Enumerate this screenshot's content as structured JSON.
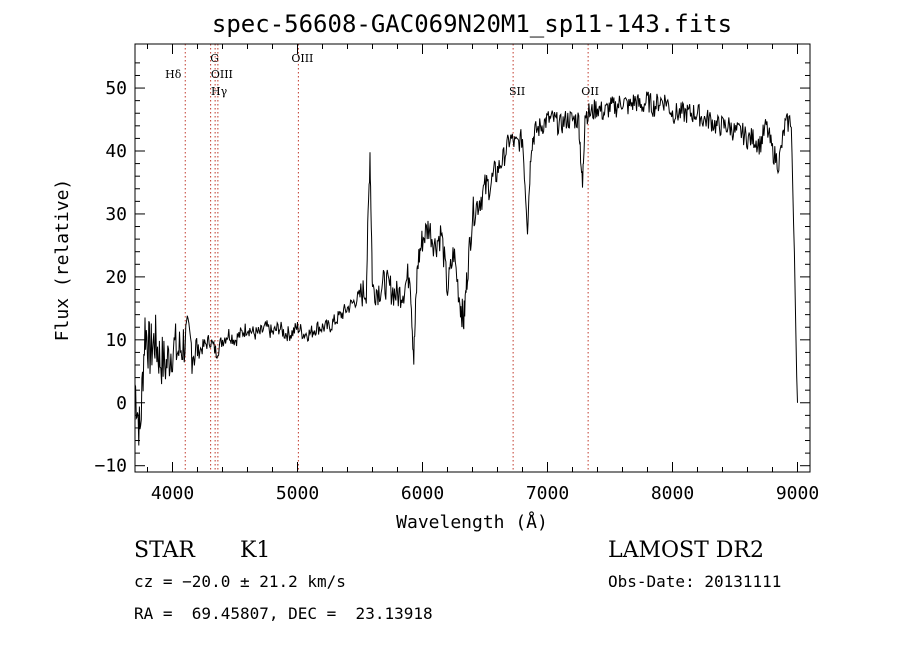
{
  "chart_data": {
    "type": "line",
    "title": "spec-56608-GAC069N20M1_sp11-143.fits",
    "xlabel": "Wavelength (Å)",
    "ylabel": "Flux (relative)",
    "xlim": [
      3700,
      9100
    ],
    "ylim": [
      -11,
      57
    ],
    "xticks": [
      4000,
      5000,
      6000,
      7000,
      8000,
      9000
    ],
    "yticks": [
      -10,
      0,
      10,
      20,
      30,
      40,
      50
    ],
    "series": [
      {
        "x": [
          3700,
          3740,
          3780,
          3820,
          3860,
          3900,
          3950,
          4000,
          4050,
          4100,
          4150,
          4200,
          4250,
          4300,
          4350,
          4400,
          4450,
          4500,
          4550,
          4600,
          4650,
          4700,
          4750,
          4800,
          4850,
          4900,
          4950,
          5000,
          5050,
          5100,
          5150,
          5200,
          5250,
          5300,
          5350,
          5400,
          5450,
          5500,
          5550,
          5580,
          5600,
          5650,
          5700,
          5750,
          5800,
          5850,
          5900,
          5930,
          5960,
          6000,
          6050,
          6100,
          6150,
          6200,
          6250,
          6300,
          6330,
          6360,
          6400,
          6450,
          6500,
          6550,
          6600,
          6650,
          6700,
          6750,
          6800,
          6840,
          6870,
          6900,
          6950,
          7000,
          7050,
          7100,
          7150,
          7200,
          7250,
          7280,
          7300,
          7350,
          7400,
          7450,
          7500,
          7550,
          7600,
          7650,
          7700,
          7750,
          7800,
          7850,
          7900,
          7950,
          8000,
          8050,
          8100,
          8150,
          8200,
          8250,
          8300,
          8350,
          8400,
          8450,
          8500,
          8550,
          8600,
          8650,
          8700,
          8750,
          8800,
          8850,
          8900,
          8950,
          9000
        ],
        "y": [
          3,
          -5,
          12,
          8,
          10,
          7,
          6,
          9,
          8,
          10,
          9,
          8,
          9,
          10,
          8,
          10,
          11,
          10,
          11,
          12,
          11,
          11,
          12,
          11,
          12,
          11,
          11,
          12,
          11,
          11,
          12,
          12,
          12,
          13,
          14,
          15,
          16,
          17,
          18,
          40,
          18,
          18,
          19,
          18,
          17,
          18,
          21,
          7,
          22,
          26,
          28,
          25,
          27,
          18,
          24,
          16,
          13,
          21,
          30,
          32,
          34,
          35,
          37,
          39,
          42,
          41,
          42,
          28,
          41,
          43,
          44,
          45,
          45,
          44,
          45,
          45,
          45,
          34,
          46,
          46,
          47,
          46,
          47,
          47,
          48,
          47,
          48,
          47,
          48,
          47,
          48,
          48,
          46,
          46,
          46,
          46,
          46,
          45,
          45,
          44,
          44,
          44,
          43,
          43,
          42,
          42,
          41,
          44,
          40,
          38,
          44,
          45,
          0
        ]
      }
    ],
    "lines": [
      {
        "label": "Hδ",
        "x": 4102
      },
      {
        "label": "G",
        "x": 4305
      },
      {
        "label": "OIII",
        "x": 4363
      },
      {
        "label": "Hγ",
        "x": 4341
      },
      {
        "label": "OIII",
        "x": 5007
      },
      {
        "label": "SII",
        "x": 6725
      },
      {
        "label": "OII",
        "x": 7325
      }
    ],
    "colors": {
      "line": "#000000",
      "marker": "#c0392b"
    }
  },
  "info": {
    "object_type": "STAR",
    "subclass": "K1",
    "cz": "cz = −20.0 ± 21.2 km/s",
    "coords": "RA =  69.45807, DEC =  23.13918",
    "survey": "LAMOST DR2",
    "obs_date": "Obs-Date: 20131111"
  }
}
